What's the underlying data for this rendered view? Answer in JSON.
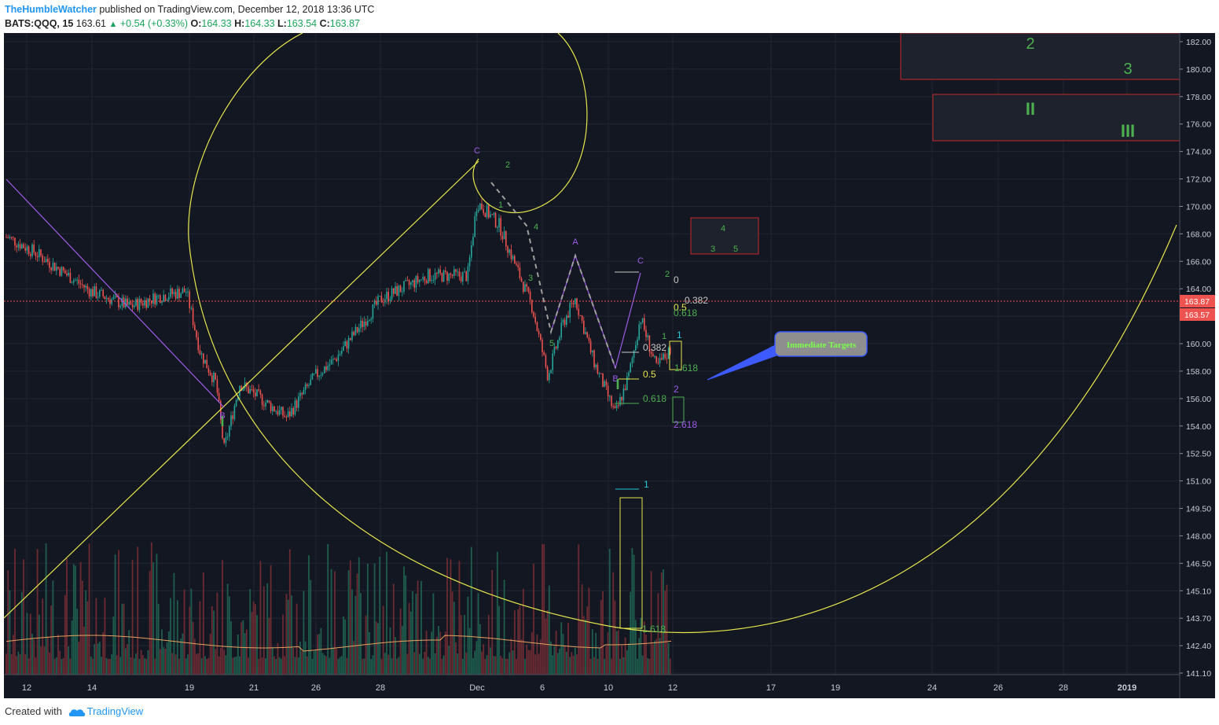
{
  "header": {
    "author": "TheHumbleWatcher",
    "published_text": "published on TradingView.com, December 12, 2018 13:36 UTC",
    "symbol": "BATS:QQQ, 15",
    "last": "163.61",
    "change": "+0.54 (+0.33%)",
    "open_label": "O:",
    "open": "164.33",
    "high_label": "H:",
    "high": "164.33",
    "low_label": "L:",
    "low": "163.54",
    "close_label": "C:",
    "close": "163.87"
  },
  "footer": {
    "created_with": "Created with",
    "brand": "TradingView"
  },
  "colors": {
    "background": "#131722",
    "grid": "#232632",
    "up": "#26a69a",
    "down": "#ef5350",
    "fib_yellow": "#e6e64d",
    "wave_green": "#4caf50",
    "wave_purple": "#9c5ce6",
    "price_label": "#ef5350",
    "annotation_box": "#c62828"
  },
  "chart_data": {
    "type": "candlestick",
    "symbol": "BATS:QQQ",
    "interval": "15",
    "x_tick_labels": [
      "12",
      "14",
      "19",
      "21",
      "26",
      "28",
      "Dec",
      "6",
      "10",
      "12",
      "17",
      "19",
      "24",
      "26",
      "28",
      "2019"
    ],
    "y_tick_labels": [
      "182.00",
      "180.00",
      "178.00",
      "176.00",
      "174.00",
      "172.00",
      "170.00",
      "168.00",
      "166.00",
      "164.00",
      "162.00",
      "160.00",
      "158.00",
      "156.00",
      "154.00",
      "152.50",
      "151.00",
      "149.50",
      "148.00",
      "146.50",
      "145.10",
      "143.70",
      "142.40",
      "141.10"
    ],
    "price_path": [
      {
        "x": "Nov 12",
        "y": 171.0
      },
      {
        "x": "Nov 13",
        "y": 170.0
      },
      {
        "x": "Nov 14",
        "y": 167.5
      },
      {
        "x": "Nov 15",
        "y": 166.5
      },
      {
        "x": "Nov 16",
        "y": 167.2
      },
      {
        "x": "Nov 19",
        "y": 167.5
      },
      {
        "x": "Nov 19 late",
        "y": 163.5
      },
      {
        "x": "Nov 20",
        "y": 161.5
      },
      {
        "x": "Nov 20 low",
        "y": 157.2
      },
      {
        "x": "Nov 21",
        "y": 161.5
      },
      {
        "x": "Nov 23",
        "y": 159.3
      },
      {
        "x": "Nov 26",
        "y": 162.0
      },
      {
        "x": "Nov 27",
        "y": 163.0
      },
      {
        "x": "Nov 28",
        "y": 167.0
      },
      {
        "x": "Nov 29",
        "y": 168.5
      },
      {
        "x": "Nov 30",
        "y": 168.5
      },
      {
        "x": "Dec 3",
        "y": 173.3
      },
      {
        "x": "Dec 4",
        "y": 171.8
      },
      {
        "x": "Dec 4 late",
        "y": 168.0
      },
      {
        "x": "Dec 5",
        "y": 166.5
      },
      {
        "x": "Dec 6",
        "y": 162.0
      },
      {
        "x": "Dec 6 late",
        "y": 165.5
      },
      {
        "x": "Dec 7",
        "y": 167.0
      },
      {
        "x": "Dec 7 late",
        "y": 163.0
      },
      {
        "x": "Dec 10",
        "y": 159.5
      },
      {
        "x": "Dec 10 late",
        "y": 162.0
      },
      {
        "x": "Dec 11",
        "y": 165.8
      },
      {
        "x": "Dec 11 late",
        "y": 162.5
      },
      {
        "x": "Dec 12",
        "y": 163.87
      }
    ],
    "last_price": 163.87,
    "price_labels": [
      "163.87",
      "163.57"
    ],
    "fib_labels": [
      {
        "text": "0",
        "price": 165.8,
        "color": "#c8c8c8"
      },
      {
        "text": "0.382",
        "price": 163.7,
        "color": "#c8c8c8"
      },
      {
        "text": "0.5",
        "price": 163.2,
        "color": "#e6e64d"
      },
      {
        "text": "0.618",
        "price": 162.8,
        "color": "#4caf50"
      },
      {
        "text": "0.382",
        "price": 160.7,
        "color": "#c8c8c8"
      },
      {
        "text": "0.5",
        "price": 159.3,
        "color": "#e6e64d"
      },
      {
        "text": "0.618",
        "price": 157.8,
        "color": "#4caf50"
      },
      {
        "text": "1",
        "price": 161.7,
        "color": "#26c6da"
      },
      {
        "text": "1.618",
        "price": 159.6,
        "color": "#4caf50"
      },
      {
        "text": "2",
        "price": 158.2,
        "color": "#9c5ce6"
      },
      {
        "text": "2.618",
        "price": 155.9,
        "color": "#9c5ce6"
      },
      {
        "text": "1",
        "price": 152.6,
        "color": "#26c6da"
      },
      {
        "text": "1.618",
        "price": 143.9,
        "color": "#4caf50"
      }
    ],
    "wave_labels": [
      {
        "text": "C",
        "color": "#9c5ce6"
      },
      {
        "text": "2",
        "color": "#4caf50"
      },
      {
        "text": "1",
        "color": "#4caf50"
      },
      {
        "text": "4",
        "color": "#4caf50"
      },
      {
        "text": "3",
        "color": "#4caf50"
      },
      {
        "text": "5",
        "color": "#4caf50"
      },
      {
        "text": "A",
        "color": "#9c5ce6"
      },
      {
        "text": "B",
        "color": "#9c5ce6"
      },
      {
        "text": "C",
        "color": "#9c5ce6"
      },
      {
        "text": "2",
        "color": "#4caf50"
      },
      {
        "text": "1",
        "color": "#4caf50"
      },
      {
        "text": "I",
        "color": "#4caf50"
      },
      {
        "text": "B",
        "color": "#9c5ce6"
      },
      {
        "text": "I",
        "color": "#4caf50"
      }
    ],
    "top_boxes": {
      "a": "2",
      "b": "3",
      "c": "II",
      "d": "III"
    },
    "small_box": {
      "a": "4",
      "b": "3",
      "c": "5"
    },
    "callout": "Immediate Targets"
  }
}
